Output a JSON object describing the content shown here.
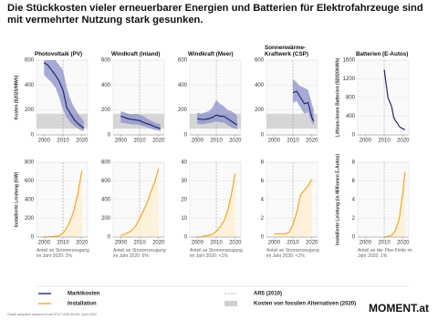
{
  "title": "Die Stückkosten vieler erneuerbarer Energien und Batterien für Elektrofahrzeuge sind mit vermehrter Nutzung stark gesunken.",
  "legend": [
    {
      "label": "Marktkosten",
      "color": "#1f2a6b",
      "style": "line"
    },
    {
      "label": "Installation",
      "color": "#f5a623",
      "style": "line"
    },
    {
      "label": "AR5 (2010)",
      "color": "#999999",
      "style": "dashed"
    },
    {
      "label": "Kosten von fossilen Alternativen (2020)",
      "color": "#d0d0d0",
      "style": "box"
    }
  ],
  "source": "Grafik adaptiert basierend auf IPCC AR6 WGIII, April 2022",
  "logo": "MOMENT.at",
  "chart_data": [
    {
      "type": "line",
      "title": "Photovoltaik (PV)",
      "y_label": "Kosten ($2020/MWh)",
      "x": [
        2000,
        2002,
        2004,
        2006,
        2008,
        2010,
        2012,
        2014,
        2016,
        2018,
        2020,
        2021
      ],
      "series": [
        {
          "color": "#1f2a6b",
          "band_color": "#8a90c8",
          "values": [
            580,
            560,
            520,
            480,
            430,
            360,
            220,
            170,
            120,
            90,
            65,
            55
          ],
          "lower": [
            480,
            450,
            420,
            380,
            300,
            200,
            140,
            100,
            70,
            50,
            35,
            30
          ],
          "upper": [
            600,
            600,
            600,
            600,
            560,
            520,
            380,
            280,
            220,
            170,
            130,
            110
          ]
        }
      ],
      "fossil_range": [
        50,
        170
      ],
      "reference_x": 2010,
      "xlim": [
        1996,
        2023
      ],
      "xticks": [
        2000,
        2010,
        2020
      ],
      "ylim": [
        0,
        600
      ],
      "yticks": [
        0,
        200,
        400,
        600
      ],
      "grid": true
    },
    {
      "type": "line",
      "title": "Windkraft (Inland)",
      "x": [
        2000,
        2002,
        2004,
        2006,
        2008,
        2010,
        2012,
        2014,
        2016,
        2018,
        2020,
        2021
      ],
      "series": [
        {
          "color": "#1f2a6b",
          "band_color": "#8a90c8",
          "values": [
            150,
            140,
            130,
            125,
            120,
            115,
            100,
            90,
            80,
            65,
            55,
            50
          ],
          "lower": [
            100,
            95,
            90,
            85,
            85,
            80,
            70,
            60,
            50,
            40,
            35,
            30
          ],
          "upper": [
            190,
            180,
            170,
            165,
            170,
            160,
            150,
            130,
            115,
            100,
            90,
            85
          ]
        }
      ],
      "fossil_range": [
        50,
        170
      ],
      "reference_x": 2010,
      "xlim": [
        1996,
        2023
      ],
      "xticks": [
        2000,
        2010,
        2020
      ],
      "ylim": [
        0,
        600
      ],
      "yticks": [
        0,
        200,
        400,
        600
      ],
      "grid": true
    },
    {
      "type": "line",
      "title": "Windkraft (Meer)",
      "x": [
        2000,
        2002,
        2004,
        2006,
        2008,
        2010,
        2012,
        2014,
        2016,
        2018,
        2020,
        2021
      ],
      "series": [
        {
          "color": "#1f2a6b",
          "band_color": "#8a90c8",
          "values": [
            130,
            125,
            125,
            130,
            140,
            160,
            150,
            150,
            130,
            110,
            90,
            80
          ],
          "lower": [
            90,
            85,
            90,
            95,
            100,
            110,
            100,
            100,
            80,
            60,
            50,
            45
          ],
          "upper": [
            180,
            170,
            180,
            190,
            220,
            280,
            250,
            230,
            200,
            190,
            170,
            150
          ]
        }
      ],
      "fossil_range": [
        50,
        170
      ],
      "reference_x": 2010,
      "xlim": [
        1996,
        2023
      ],
      "xticks": [
        2000,
        2010,
        2020
      ],
      "ylim": [
        0,
        600
      ],
      "yticks": [
        0,
        200,
        400,
        600
      ],
      "grid": true
    },
    {
      "type": "line",
      "title": "Sonnenwärme-Kraftwerk (CSP)",
      "x": [
        2010,
        2012,
        2014,
        2016,
        2018,
        2020,
        2021
      ],
      "series": [
        {
          "color": "#1f2a6b",
          "band_color": "#8a90c8",
          "values": [
            340,
            350,
            300,
            250,
            260,
            140,
            110
          ],
          "lower": [
            260,
            270,
            220,
            170,
            180,
            100,
            80
          ],
          "upper": [
            450,
            420,
            390,
            380,
            360,
            250,
            200
          ]
        }
      ],
      "fossil_range": [
        50,
        170
      ],
      "reference_x": 2010,
      "xlim": [
        1996,
        2023
      ],
      "xticks": [
        2000,
        2010,
        2020
      ],
      "ylim": [
        0,
        600
      ],
      "yticks": [
        0,
        200,
        400,
        600
      ],
      "grid": true
    },
    {
      "type": "line",
      "title": "Batterien (E-Autos)",
      "y_label": "Lithium-Ionen Batterien ($2020/kWh)",
      "x": [
        2010,
        2011,
        2012,
        2013,
        2014,
        2015,
        2016,
        2017,
        2018,
        2019,
        2020,
        2021
      ],
      "series": [
        {
          "color": "#1f2a6b",
          "values": [
            1400,
            1100,
            800,
            700,
            600,
            380,
            300,
            250,
            180,
            150,
            130,
            110
          ]
        }
      ],
      "reference_x": 2010,
      "xlim": [
        1996,
        2023
      ],
      "xticks": [
        2000,
        2010,
        2020
      ],
      "ylim": [
        0,
        1600
      ],
      "yticks": [
        0,
        400,
        800,
        1200,
        1600
      ],
      "grid": true
    },
    {
      "type": "line",
      "y_label": "Installierte Leistung (GW)",
      "footnote": "Anteil an Stromerzeugung im Jahr 2020: 3%",
      "x": [
        2000,
        2002,
        2004,
        2006,
        2008,
        2010,
        2012,
        2014,
        2016,
        2018,
        2020
      ],
      "series": [
        {
          "color": "#f5a623",
          "values": [
            1,
            2,
            4,
            7,
            15,
            40,
            100,
            180,
            300,
            480,
            710
          ]
        }
      ],
      "reference_x": 2010,
      "xlim": [
        1996,
        2023
      ],
      "xticks": [
        2000,
        2010,
        2020
      ],
      "ylim": [
        0,
        800
      ],
      "yticks": [
        0,
        200,
        400,
        600,
        800
      ],
      "grid": true
    },
    {
      "type": "line",
      "footnote": "Anteil an Stromerzeugung im Jahr 2020: 6%",
      "x": [
        2000,
        2002,
        2004,
        2006,
        2008,
        2010,
        2012,
        2014,
        2016,
        2018,
        2020
      ],
      "series": [
        {
          "color": "#f5a623",
          "values": [
            17,
            31,
            48,
            74,
            121,
            198,
            283,
            370,
            487,
            591,
            733
          ]
        }
      ],
      "reference_x": 2010,
      "xlim": [
        1996,
        2023
      ],
      "xticks": [
        2000,
        2010,
        2020
      ],
      "ylim": [
        0,
        800
      ],
      "yticks": [
        0,
        200,
        400,
        600,
        800
      ],
      "grid": true
    },
    {
      "type": "line",
      "footnote": "Anteil an Stromerzeugung im Jahr 2020: <1%",
      "x": [
        2000,
        2002,
        2004,
        2006,
        2008,
        2010,
        2012,
        2014,
        2016,
        2018,
        2020
      ],
      "series": [
        {
          "color": "#f5a623",
          "values": [
            0,
            0.1,
            0.6,
            0.9,
            1.5,
            3,
            5.4,
            8.5,
            14,
            23,
            34
          ]
        }
      ],
      "reference_x": 2010,
      "xlim": [
        1996,
        2023
      ],
      "xticks": [
        2000,
        2010,
        2020
      ],
      "ylim": [
        0,
        40
      ],
      "yticks": [
        0,
        10,
        20,
        30,
        40
      ],
      "grid": true
    },
    {
      "type": "line",
      "footnote": "Anteil an Stromerzeugung im Jahr 2020: <1%",
      "x": [
        2000,
        2002,
        2004,
        2006,
        2008,
        2010,
        2012,
        2014,
        2016,
        2018,
        2020
      ],
      "series": [
        {
          "color": "#f5a623",
          "values": [
            0.35,
            0.35,
            0.35,
            0.35,
            0.5,
            1.3,
            2.6,
            4.5,
            5,
            5.5,
            6.2
          ]
        }
      ],
      "reference_x": 2010,
      "xlim": [
        1996,
        2023
      ],
      "xticks": [
        2000,
        2010,
        2020
      ],
      "ylim": [
        0,
        8
      ],
      "yticks": [
        0,
        2,
        4,
        6,
        8
      ],
      "grid": true
    },
    {
      "type": "line",
      "y_label": "Installierte Leistung (in Millionen E-Autos)",
      "footnote": "Anteil an der Pkw-Flotte im Jahr 2020: 1%",
      "x": [
        2010,
        2012,
        2014,
        2016,
        2018,
        2020,
        2021
      ],
      "series": [
        {
          "color": "#f5a623",
          "values": [
            0,
            0.05,
            0.2,
            0.7,
            2,
            5,
            7
          ]
        }
      ],
      "reference_x": 2010,
      "xlim": [
        1996,
        2023
      ],
      "xticks": [
        2000,
        2010,
        2020
      ],
      "ylim": [
        0,
        8
      ],
      "yticks": [
        0,
        2,
        4,
        6,
        8
      ],
      "grid": true
    }
  ]
}
